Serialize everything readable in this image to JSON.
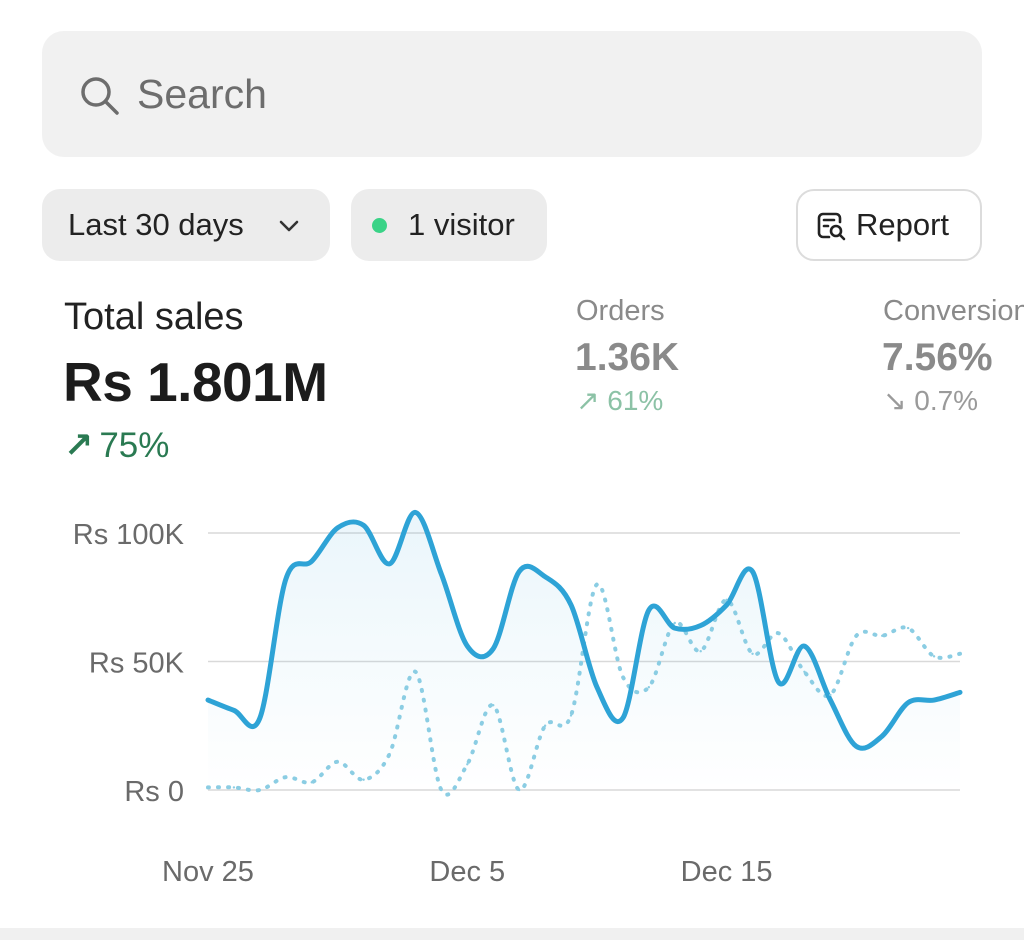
{
  "search": {
    "placeholder": "Search"
  },
  "filters": {
    "date_range": "Last 30 days",
    "visitors": "1 visitor",
    "report": "Report"
  },
  "metrics": {
    "total_sales": {
      "label": "Total sales",
      "value": "Rs 1.801M",
      "change": "75%",
      "arrow": "↗",
      "color": "#2a7a52"
    },
    "orders": {
      "label": "Orders",
      "value": "1.36K",
      "change": "61%",
      "arrow": "↗"
    },
    "conversion": {
      "label": "Conversion",
      "value": "7.56%",
      "change": "0.7%",
      "arrow": "↘"
    }
  },
  "colors": {
    "primary_line": "#2ea3d6",
    "comparison_line": "#8bcde3",
    "live_dot": "#3ad387"
  },
  "chart_data": {
    "type": "line",
    "y_ticks": [
      {
        "label": "Rs 100K",
        "value": 100000
      },
      {
        "label": "Rs 50K",
        "value": 50000
      },
      {
        "label": "Rs 0",
        "value": 0
      }
    ],
    "x_ticks": [
      {
        "label": "Nov 25",
        "index": 0
      },
      {
        "label": "Dec 5",
        "index": 10
      },
      {
        "label": "Dec 15",
        "index": 20
      }
    ],
    "ylim": [
      0,
      110000
    ],
    "grid": true,
    "series": [
      {
        "style": "solid",
        "values": [
          35000,
          31000,
          28000,
          82000,
          89000,
          102000,
          103000,
          88000,
          108000,
          84000,
          56000,
          55000,
          85000,
          83000,
          72000,
          40000,
          28000,
          70000,
          63000,
          64000,
          72000,
          85000,
          42000,
          56000,
          35000,
          17000,
          21000,
          34000,
          35000,
          38000
        ]
      },
      {
        "style": "dotted",
        "values": [
          1000,
          1000,
          0,
          5000,
          3000,
          11000,
          4000,
          14000,
          46000,
          0,
          10000,
          33000,
          0,
          25000,
          29000,
          80000,
          44000,
          40000,
          65000,
          54000,
          74000,
          53000,
          61000,
          46000,
          37000,
          60000,
          60000,
          63000,
          52000,
          53000
        ]
      }
    ]
  }
}
